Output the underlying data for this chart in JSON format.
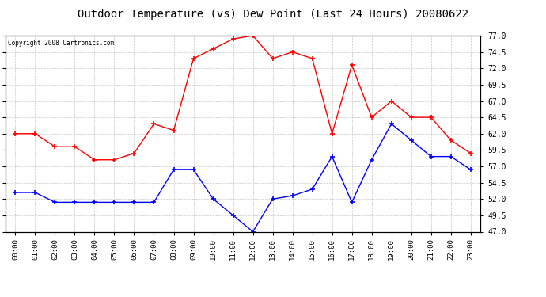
{
  "title": "Outdoor Temperature (vs) Dew Point (Last 24 Hours) 20080622",
  "copyright_text": "Copyright 2008 Cartronics.com",
  "x_labels": [
    "00:00",
    "01:00",
    "02:00",
    "03:00",
    "04:00",
    "05:00",
    "06:00",
    "07:00",
    "08:00",
    "09:00",
    "10:00",
    "11:00",
    "12:00",
    "13:00",
    "14:00",
    "15:00",
    "16:00",
    "17:00",
    "18:00",
    "19:00",
    "20:00",
    "21:00",
    "22:00",
    "23:00"
  ],
  "temp_data": [
    62.0,
    62.0,
    60.0,
    60.0,
    58.0,
    58.0,
    59.0,
    63.5,
    62.5,
    73.5,
    75.0,
    76.5,
    77.0,
    73.5,
    74.5,
    73.5,
    62.0,
    72.5,
    64.5,
    67.0,
    64.5,
    64.5,
    61.0,
    59.0
  ],
  "dew_data": [
    53.0,
    53.0,
    51.5,
    51.5,
    51.5,
    51.5,
    51.5,
    51.5,
    56.5,
    56.5,
    52.0,
    49.5,
    47.0,
    52.0,
    52.5,
    53.5,
    58.5,
    51.5,
    58.0,
    63.5,
    61.0,
    58.5,
    58.5,
    56.5
  ],
  "temp_color": "#ff0000",
  "dew_color": "#0000ff",
  "background_color": "#ffffff",
  "plot_bg_color": "#ffffff",
  "grid_color": "#c8c8c8",
  "title_fontsize": 10,
  "ylim": [
    47.0,
    77.0
  ],
  "yticks": [
    47.0,
    49.5,
    52.0,
    54.5,
    57.0,
    59.5,
    62.0,
    64.5,
    67.0,
    69.5,
    72.0,
    74.5,
    77.0
  ]
}
